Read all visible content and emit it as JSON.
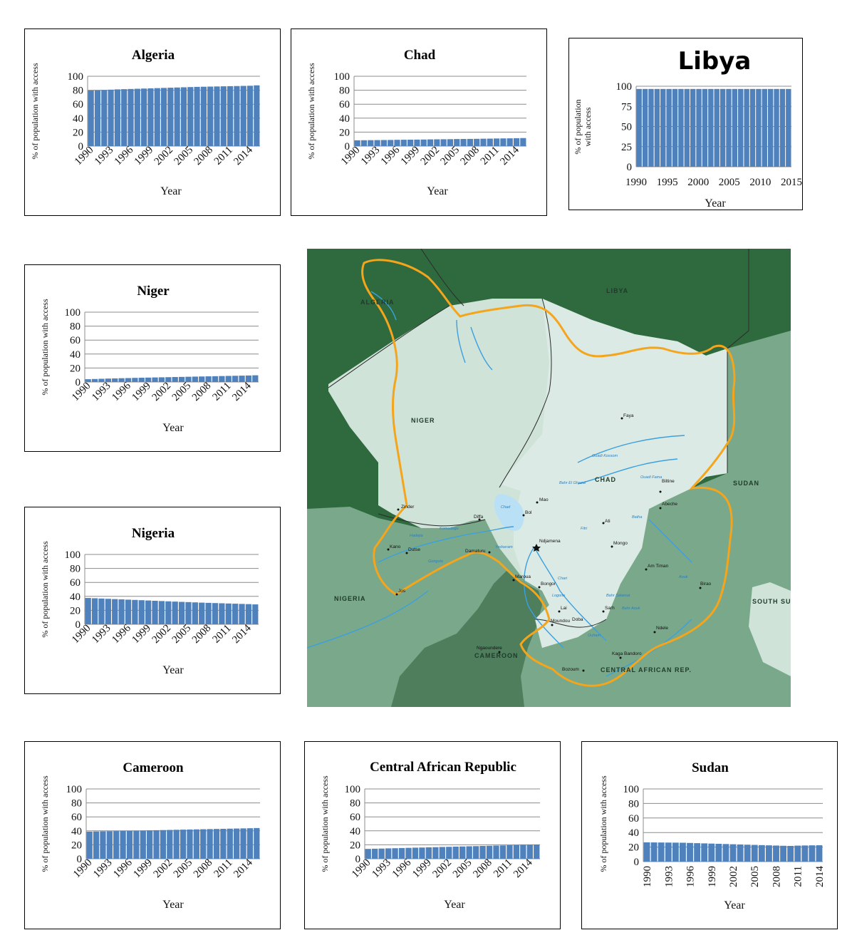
{
  "charts": [
    {
      "id": "algeria",
      "chart_data": {
        "type": "bar",
        "title": "Algeria",
        "xlabel": "Year",
        "ylabel": "% of population with access",
        "ylim": [
          0,
          100
        ],
        "yticks": [
          0,
          20,
          40,
          60,
          80,
          100
        ],
        "grid": true,
        "x": [
          1990,
          1991,
          1992,
          1993,
          1994,
          1995,
          1996,
          1997,
          1998,
          1999,
          2000,
          2001,
          2002,
          2003,
          2004,
          2005,
          2006,
          2007,
          2008,
          2009,
          2010,
          2011,
          2012,
          2013,
          2014,
          2015
        ],
        "xtick_labels": [
          "1990",
          "1993",
          "1996",
          "1999",
          "2002",
          "2005",
          "2008",
          "2011",
          "2014"
        ],
        "values": [
          79.6,
          80.0,
          80.4,
          80.8,
          81.2,
          81.5,
          81.8,
          82.1,
          82.4,
          82.7,
          83.0,
          83.3,
          83.6,
          83.9,
          84.2,
          84.5,
          84.8,
          85.0,
          85.2,
          85.4,
          85.6,
          85.8,
          86.0,
          86.2,
          86.4,
          87.0
        ]
      }
    },
    {
      "id": "chad",
      "chart_data": {
        "type": "bar",
        "title": "Chad",
        "xlabel": "Year",
        "ylabel": "% of population with access",
        "ylim": [
          0,
          100
        ],
        "yticks": [
          0,
          20,
          40,
          60,
          80,
          100
        ],
        "grid": true,
        "x": [
          1990,
          1991,
          1992,
          1993,
          1994,
          1995,
          1996,
          1997,
          1998,
          1999,
          2000,
          2001,
          2002,
          2003,
          2004,
          2005,
          2006,
          2007,
          2008,
          2009,
          2010,
          2011,
          2012,
          2013,
          2014,
          2015
        ],
        "xtick_labels": [
          "1990",
          "1993",
          "1996",
          "1999",
          "2002",
          "2005",
          "2008",
          "2011",
          "2014"
        ],
        "values": [
          8.3,
          8.4,
          8.5,
          8.6,
          8.7,
          8.8,
          9.0,
          9.1,
          9.2,
          9.3,
          9.4,
          9.6,
          9.7,
          9.8,
          9.9,
          10.1,
          10.2,
          10.3,
          10.4,
          10.6,
          10.7,
          10.9,
          11.0,
          11.1,
          11.3,
          11.5
        ]
      }
    },
    {
      "id": "libya",
      "chart_data": {
        "type": "bar",
        "title": "Libya",
        "xlabel": "Year",
        "ylabel": "% of population with access",
        "ylim": [
          0,
          100
        ],
        "yticks": [
          0,
          25,
          50,
          75,
          100
        ],
        "grid": true,
        "x": [
          1990,
          1991,
          1992,
          1993,
          1994,
          1995,
          1996,
          1997,
          1998,
          1999,
          2000,
          2001,
          2002,
          2003,
          2004,
          2005,
          2006,
          2007,
          2008,
          2009,
          2010,
          2011,
          2012,
          2013,
          2014,
          2015
        ],
        "xtick_labels": [
          "1990",
          "1995",
          "2000",
          "2005",
          "2010",
          "2015"
        ],
        "values": [
          96.6,
          96.6,
          96.6,
          96.6,
          96.6,
          96.6,
          96.6,
          96.6,
          96.6,
          96.6,
          96.6,
          96.6,
          96.6,
          96.6,
          96.6,
          96.6,
          96.6,
          96.6,
          96.6,
          96.6,
          96.6,
          96.6,
          96.6,
          96.6,
          96.6,
          96.6
        ]
      }
    },
    {
      "id": "niger",
      "chart_data": {
        "type": "bar",
        "title": "Niger",
        "xlabel": "Year",
        "ylabel": "% of population with access",
        "ylim": [
          0,
          100
        ],
        "yticks": [
          0,
          20,
          40,
          60,
          80,
          100
        ],
        "grid": true,
        "x": [
          1990,
          1991,
          1992,
          1993,
          1994,
          1995,
          1996,
          1997,
          1998,
          1999,
          2000,
          2001,
          2002,
          2003,
          2004,
          2005,
          2006,
          2007,
          2008,
          2009,
          2010,
          2011,
          2012,
          2013,
          2014,
          2015
        ],
        "xtick_labels": [
          "1990",
          "1993",
          "1996",
          "1999",
          "2002",
          "2005",
          "2008",
          "2011",
          "2014"
        ],
        "values": [
          4.0,
          4.3,
          4.6,
          4.9,
          5.1,
          5.4,
          5.6,
          5.9,
          6.1,
          6.3,
          6.5,
          6.7,
          6.9,
          7.1,
          7.3,
          7.5,
          7.7,
          7.9,
          8.1,
          8.3,
          8.5,
          8.7,
          8.9,
          9.1,
          9.3,
          9.6
        ]
      }
    },
    {
      "id": "nigeria",
      "chart_data": {
        "type": "bar",
        "title": "Nigeria",
        "xlabel": "Year",
        "ylabel": "% of population with access",
        "ylim": [
          0,
          100
        ],
        "yticks": [
          0,
          20,
          40,
          60,
          80,
          100
        ],
        "grid": true,
        "x": [
          1990,
          1991,
          1992,
          1993,
          1994,
          1995,
          1996,
          1997,
          1998,
          1999,
          2000,
          2001,
          2002,
          2003,
          2004,
          2005,
          2006,
          2007,
          2008,
          2009,
          2010,
          2011,
          2012,
          2013,
          2014,
          2015
        ],
        "xtick_labels": [
          "1990",
          "1993",
          "1996",
          "1999",
          "2002",
          "2005",
          "2008",
          "2011",
          "2014"
        ],
        "values": [
          37.7,
          37.3,
          36.9,
          36.5,
          36.1,
          35.7,
          35.3,
          34.9,
          34.5,
          34.1,
          33.7,
          33.3,
          32.9,
          32.5,
          32.1,
          31.8,
          31.4,
          31.0,
          30.7,
          30.4,
          30.1,
          29.8,
          29.5,
          29.2,
          28.9,
          28.5
        ]
      }
    },
    {
      "id": "cameroon",
      "chart_data": {
        "type": "bar",
        "title": "Cameroon",
        "xlabel": "Year",
        "ylabel": "% of population with access",
        "ylim": [
          0,
          100
        ],
        "yticks": [
          0,
          20,
          40,
          60,
          80,
          100
        ],
        "grid": true,
        "x": [
          1990,
          1991,
          1992,
          1993,
          1994,
          1995,
          1996,
          1997,
          1998,
          1999,
          2000,
          2001,
          2002,
          2003,
          2004,
          2005,
          2006,
          2007,
          2008,
          2009,
          2010,
          2011,
          2012,
          2013,
          2014,
          2015
        ],
        "xtick_labels": [
          "1990",
          "1993",
          "1996",
          "1999",
          "2002",
          "2005",
          "2008",
          "2011",
          "2014"
        ],
        "values": [
          38.9,
          39.1,
          39.3,
          39.5,
          39.7,
          39.9,
          40.1,
          40.3,
          40.5,
          40.7,
          40.9,
          41.1,
          41.3,
          41.5,
          41.7,
          41.9,
          42.1,
          42.3,
          42.5,
          42.7,
          42.9,
          43.1,
          43.3,
          43.5,
          43.7,
          44.0
        ]
      }
    },
    {
      "id": "car",
      "chart_data": {
        "type": "bar",
        "title": "Central African Republic",
        "xlabel": "Year",
        "ylabel": "% of population with access",
        "ylim": [
          0,
          100
        ],
        "yticks": [
          0,
          20,
          40,
          60,
          80,
          100
        ],
        "grid": true,
        "x": [
          1990,
          1991,
          1992,
          1993,
          1994,
          1995,
          1996,
          1997,
          1998,
          1999,
          2000,
          2001,
          2002,
          2003,
          2004,
          2005,
          2006,
          2007,
          2008,
          2009,
          2010,
          2011,
          2012,
          2013,
          2014,
          2015
        ],
        "xtick_labels": [
          "1990",
          "1993",
          "1996",
          "1999",
          "2002",
          "2005",
          "2008",
          "2011",
          "2014"
        ],
        "values": [
          14.1,
          14.4,
          14.6,
          14.9,
          15.1,
          15.4,
          15.6,
          15.9,
          16.1,
          16.4,
          16.6,
          16.9,
          17.1,
          17.4,
          17.6,
          17.9,
          18.1,
          18.4,
          18.6,
          18.9,
          19.1,
          19.4,
          19.6,
          19.9,
          20.1,
          20.4
        ]
      }
    },
    {
      "id": "sudan",
      "chart_data": {
        "type": "bar",
        "title": "Sudan",
        "xlabel": "Year",
        "ylabel": "% of population with access",
        "ylim": [
          0,
          100
        ],
        "yticks": [
          0,
          20,
          40,
          60,
          80,
          100
        ],
        "grid": true,
        "x": [
          1990,
          1991,
          1992,
          1993,
          1994,
          1995,
          1996,
          1997,
          1998,
          1999,
          2000,
          2001,
          2002,
          2003,
          2004,
          2005,
          2006,
          2007,
          2008,
          2009,
          2010,
          2011,
          2012,
          2013,
          2014
        ],
        "xtick_labels": [
          "1990",
          "1993",
          "1996",
          "1999",
          "2002",
          "2005",
          "2008",
          "2011",
          "2014"
        ],
        "values": [
          26.5,
          26.4,
          26.3,
          26.2,
          26.1,
          26.0,
          25.7,
          25.4,
          25.1,
          24.8,
          24.5,
          24.2,
          23.9,
          23.6,
          23.3,
          23.0,
          22.7,
          22.4,
          22.1,
          21.8,
          21.6,
          22.0,
          22.2,
          22.4,
          22.5
        ]
      }
    }
  ],
  "map": {
    "country_labels": [
      "LIBYA",
      "ALGERIA",
      "NIGER",
      "CHAD",
      "SUDAN",
      "NIGERIA",
      "CAMEROON",
      "CENTRAL AFRICAN REP.",
      "SOUTH SUDAN"
    ],
    "cities": [
      "Faya",
      "Mao",
      "Bol",
      "Diffa",
      "Zinder",
      "Kano",
      "Dutse",
      "Damaturu",
      "Jos",
      "Ndjamena",
      "Maroua",
      "Bongor",
      "Lai",
      "Moundou",
      "Doba",
      "Sarh",
      "Am Timan",
      "Mongo",
      "Ati",
      "Biltine",
      "Abeche",
      "Birao",
      "Ndele",
      "Kaga Bandoro",
      "Bozoum",
      "Ngaoundere"
    ],
    "rivers": [
      "Ouadi Kossom",
      "Ouadi Fama",
      "Bahr El Ghazal",
      "Chad",
      "Batha",
      "Fitri",
      "Komadugu",
      "Hadejia",
      "Yedseram",
      "Chari",
      "Logone",
      "Bahr Salamat",
      "Bahr Aouk",
      "Ouham",
      "Aouk",
      "Gongola"
    ],
    "colors": {
      "basin_border": "#f4a51c",
      "basin_fill": "#d0e4dc",
      "outer_dark": "#2e6a3e",
      "outer_mid": "#7aa88a",
      "river": "#3aa0e0"
    }
  }
}
